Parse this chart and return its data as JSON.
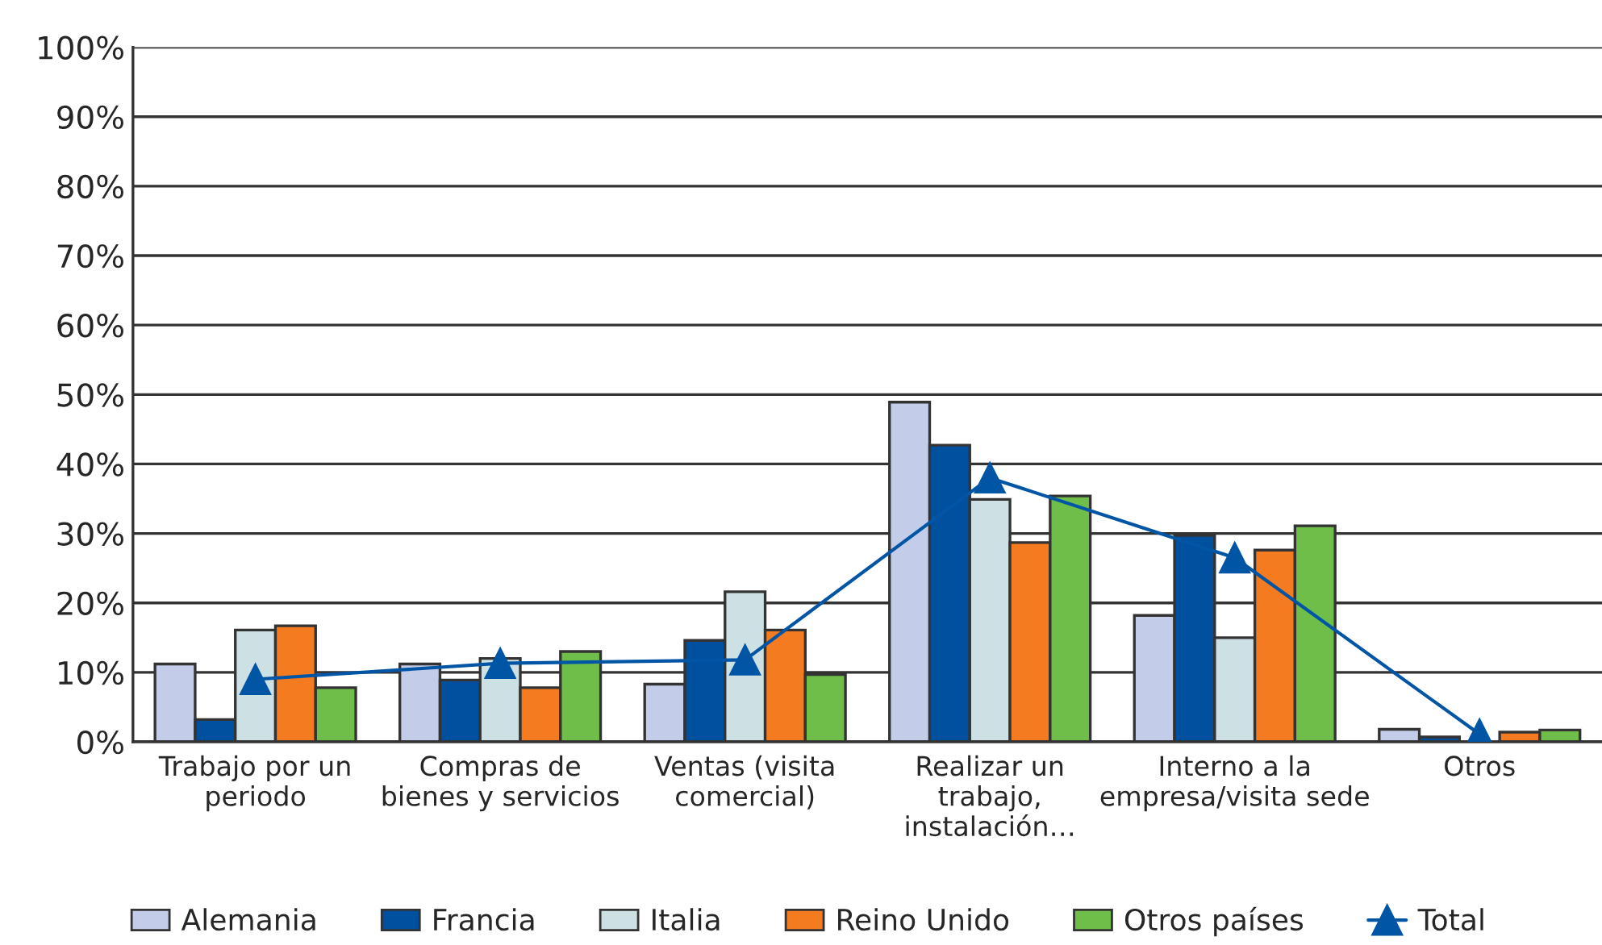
{
  "chart_data": {
    "type": "bar",
    "categories": [
      "Trabajo por un\nperiodo",
      "Compras de\nbienes y servicios",
      "Ventas (visita\ncomercial)",
      "Realizar un\ntrabajo,\ninstalación…",
      "Interno a la\nempresa/visita sede",
      "Otros"
    ],
    "series": [
      {
        "name": "Alemania",
        "color": "#c3cce8",
        "values": [
          11.2,
          11.2,
          8.3,
          48.9,
          18.2,
          1.8
        ]
      },
      {
        "name": "Francia",
        "color": "#0050a0",
        "values": [
          3.2,
          8.9,
          14.6,
          42.7,
          29.7,
          0.7
        ]
      },
      {
        "name": "Italia",
        "color": "#cde0e3",
        "values": [
          16.1,
          12.0,
          21.6,
          34.9,
          15.0,
          null
        ]
      },
      {
        "name": "Reino Unido",
        "color": "#f47b20",
        "values": [
          16.7,
          7.8,
          16.1,
          28.7,
          27.6,
          1.4
        ]
      },
      {
        "name": "Otros países",
        "color": "#6fbe4a",
        "values": [
          7.8,
          13.0,
          9.7,
          35.4,
          31.1,
          1.7
        ]
      },
      {
        "name": "Total",
        "color": "#0055a5",
        "type": "line",
        "marker": "triangle",
        "values": [
          9.0,
          11.3,
          11.8,
          38.0,
          26.5,
          1.1
        ]
      }
    ],
    "ylim": [
      0,
      100
    ],
    "yticks": [
      {
        "value": 0,
        "label": "0%"
      },
      {
        "value": 10,
        "label": "10%"
      },
      {
        "value": 20,
        "label": "20%"
      },
      {
        "value": 30,
        "label": "30%"
      },
      {
        "value": 40,
        "label": "40%"
      },
      {
        "value": 50,
        "label": "50%"
      },
      {
        "value": 60,
        "label": "60%"
      },
      {
        "value": 70,
        "label": "70%"
      },
      {
        "value": 80,
        "label": "80%"
      },
      {
        "value": 90,
        "label": "90%"
      },
      {
        "value": 100,
        "label": "100%"
      }
    ],
    "grid": "y",
    "legend": "bottom"
  }
}
